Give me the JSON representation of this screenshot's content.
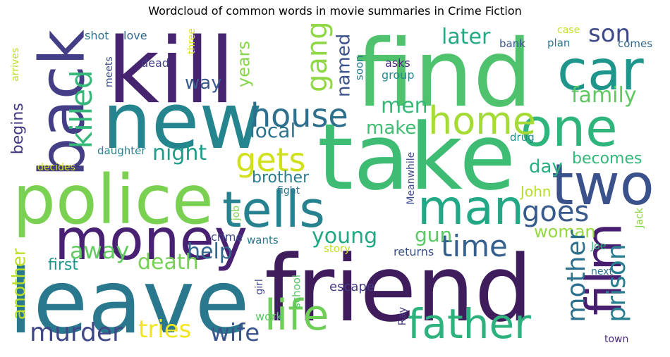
{
  "chart_data": {
    "type": "wordcloud",
    "title": "Wordcloud of common words in movie summaries in Crime Fiction",
    "words": [
      {
        "text": "kill",
        "color": "#46246f"
      },
      {
        "text": "find",
        "color": "#4ec26c"
      },
      {
        "text": "new",
        "color": "#25858e"
      },
      {
        "text": "take",
        "color": "#3fbc73"
      },
      {
        "text": "friend",
        "color": "#3f1d5c"
      },
      {
        "text": "leave",
        "color": "#2a788e"
      },
      {
        "text": "police",
        "color": "#7ad151"
      },
      {
        "text": "back",
        "color": "#433e85"
      },
      {
        "text": "car",
        "color": "#1f968b"
      },
      {
        "text": "one",
        "color": "#2fb47c"
      },
      {
        "text": "two",
        "color": "#3b518b"
      },
      {
        "text": "money",
        "color": "#482173"
      },
      {
        "text": "tells",
        "color": "#26828e"
      },
      {
        "text": "man",
        "color": "#22a884"
      },
      {
        "text": "film",
        "color": "#481f70"
      },
      {
        "text": "life",
        "color": "#6ece58"
      },
      {
        "text": "father",
        "color": "#2db27d"
      },
      {
        "text": "home",
        "color": "#a5db36"
      },
      {
        "text": "house",
        "color": "#2e6f8e"
      },
      {
        "text": "gang",
        "color": "#8fd744"
      },
      {
        "text": "killed",
        "color": "#35b779"
      },
      {
        "text": "son",
        "color": "#3e4989"
      },
      {
        "text": "later",
        "color": "#24aa83"
      },
      {
        "text": "family",
        "color": "#5ec962"
      },
      {
        "text": "gets",
        "color": "#d0e11c"
      },
      {
        "text": "men",
        "color": "#37b878"
      },
      {
        "text": "time",
        "color": "#34608d"
      },
      {
        "text": "goes",
        "color": "#38598c"
      },
      {
        "text": "night",
        "color": "#1e9c89"
      },
      {
        "text": "local",
        "color": "#2c738e"
      },
      {
        "text": "make",
        "color": "#40bd72"
      },
      {
        "text": "day",
        "color": "#29af7f"
      },
      {
        "text": "murder",
        "color": "#3f4788"
      },
      {
        "text": "wife",
        "color": "#39558c"
      },
      {
        "text": "tries",
        "color": "#f1e51d"
      },
      {
        "text": "death",
        "color": "#75d054"
      },
      {
        "text": "away",
        "color": "#62cb5f"
      },
      {
        "text": "help",
        "color": "#31688e"
      },
      {
        "text": "young",
        "color": "#22a785"
      },
      {
        "text": "gun",
        "color": "#5cc863"
      },
      {
        "text": "woman",
        "color": "#95d840"
      },
      {
        "text": "mother",
        "color": "#2d708e"
      },
      {
        "text": "prison",
        "color": "#287d8e"
      },
      {
        "text": "brother",
        "color": "#287c8e"
      },
      {
        "text": "becomes",
        "color": "#35b779"
      },
      {
        "text": "John",
        "color": "#b5de2b"
      },
      {
        "text": "years",
        "color": "#86d549"
      },
      {
        "text": "way",
        "color": "#38598c"
      },
      {
        "text": "named",
        "color": "#3b528b"
      },
      {
        "text": "first",
        "color": "#1f988b"
      },
      {
        "text": "another",
        "color": "#bddf26"
      },
      {
        "text": "begins",
        "color": "#453781"
      },
      {
        "text": "shot",
        "color": "#2c718e"
      },
      {
        "text": "love",
        "color": "#31688e"
      },
      {
        "text": "three",
        "color": "#dde318"
      },
      {
        "text": "arrives",
        "color": "#b8de29"
      },
      {
        "text": "meets",
        "color": "#3d4e8a"
      },
      {
        "text": "dead",
        "color": "#414487"
      },
      {
        "text": "soon",
        "color": "#2a788e"
      },
      {
        "text": "asks",
        "color": "#482979"
      },
      {
        "text": "group",
        "color": "#238a8d"
      },
      {
        "text": "bank",
        "color": "#3b528b"
      },
      {
        "text": "plan",
        "color": "#2a788e"
      },
      {
        "text": "case",
        "color": "#c2df23"
      },
      {
        "text": "comes",
        "color": "#31688e"
      },
      {
        "text": "daughter",
        "color": "#26828e"
      },
      {
        "text": "decides",
        "color": "#d2e21b"
      },
      {
        "text": "drug",
        "color": "#238a8d"
      },
      {
        "text": "fight",
        "color": "#2c718e"
      },
      {
        "text": "Meanwhile",
        "color": "#3e4989"
      },
      {
        "text": "job",
        "color": "#79d151"
      },
      {
        "text": "crime",
        "color": "#3e4a89"
      },
      {
        "text": "wants",
        "color": "#2a788e"
      },
      {
        "text": "Jack",
        "color": "#87d549"
      },
      {
        "text": "Joe",
        "color": "#2fb47c"
      },
      {
        "text": "story",
        "color": "#c0df25"
      },
      {
        "text": "returns",
        "color": "#3b528b"
      },
      {
        "text": "next",
        "color": "#2c728e"
      },
      {
        "text": "girl",
        "color": "#404688"
      },
      {
        "text": "school",
        "color": "#56c667"
      },
      {
        "text": "escape",
        "color": "#443a83"
      },
      {
        "text": "work",
        "color": "#5ac864"
      },
      {
        "text": "Ray",
        "color": "#453882"
      },
      {
        "text": "town",
        "color": "#482878"
      }
    ]
  }
}
